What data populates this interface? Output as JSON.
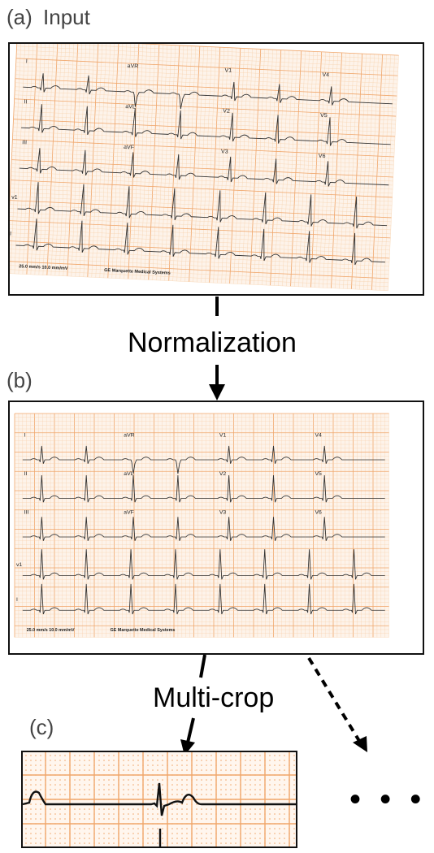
{
  "panel_a": {
    "label": "(a)",
    "title": "Input"
  },
  "panel_b": {
    "label": "(b)"
  },
  "panel_c": {
    "label": "(c)"
  },
  "steps": {
    "normalization": "Normalization",
    "multicrop": "Multi-crop"
  },
  "ellipsis": "• • •",
  "ecg": {
    "leads": {
      "row1": [
        "I",
        "aVR",
        "V1",
        "V4"
      ],
      "row2": [
        "II",
        "aVL",
        "V2",
        "V5"
      ],
      "row3": [
        "III",
        "aVF",
        "V3",
        "V6"
      ],
      "rhythm": [
        "v1",
        "I"
      ]
    },
    "footer_speed": "25.0 mm/s   10.0 mm/mV",
    "footer_vendor": "GE Marquette Medical Systems"
  },
  "colors": {
    "grid_minor": "#f7cfa8",
    "grid_major": "#f0a66a",
    "paper": "#fdf3ea",
    "trace": "#333333"
  }
}
